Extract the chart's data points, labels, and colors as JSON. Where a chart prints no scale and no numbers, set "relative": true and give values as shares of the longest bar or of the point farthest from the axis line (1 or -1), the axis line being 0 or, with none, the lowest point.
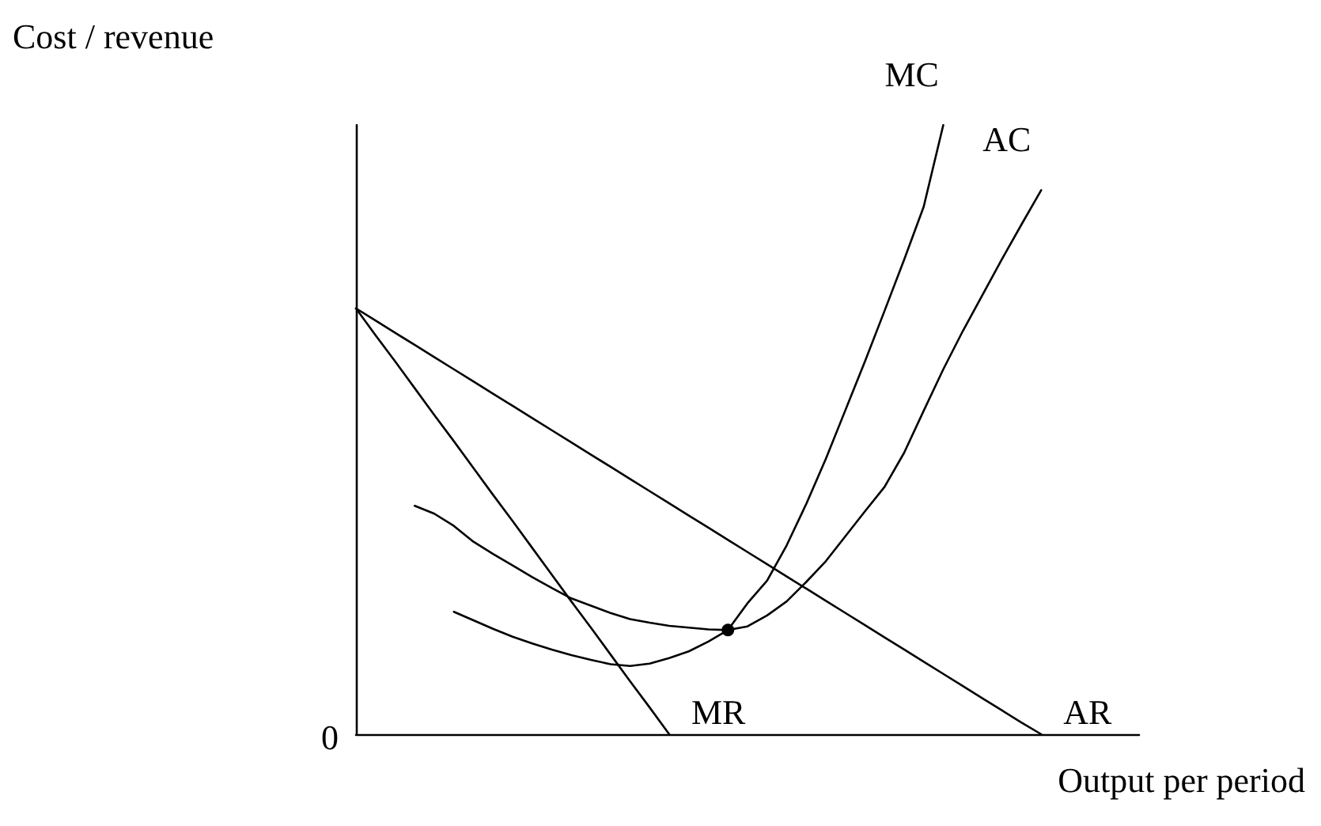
{
  "chart_data": {
    "type": "line",
    "relative": true,
    "ylabel": "Cost / revenue",
    "xlabel": "Output per period",
    "annotations": [
      "0"
    ],
    "grid": false,
    "legend": false,
    "line_style": "solid",
    "categories": [
      null,
      null,
      null,
      null,
      null,
      null,
      null,
      null,
      null,
      null,
      null,
      null,
      null,
      null,
      null,
      null,
      null,
      null,
      null,
      null,
      null,
      null,
      null,
      null,
      null,
      null,
      null,
      null,
      null,
      null,
      null,
      null,
      null,
      null,
      null,
      null,
      null,
      null,
      null,
      null,
      null
    ],
    "series": [
      {
        "name": "MC",
        "color": "#000000",
        "values": [
          null,
          null,
          null,
          null,
          null,
          0.201,
          0.187,
          0.173,
          0.16,
          0.149,
          0.139,
          0.13,
          0.122,
          0.115,
          0.112,
          0.116,
          0.125,
          0.136,
          0.152,
          0.171,
          0.215,
          0.252,
          0.31,
          0.378,
          0.452,
          0.532,
          0.612,
          0.695,
          0.779,
          0.866,
          1.0,
          null,
          null,
          null,
          null,
          null,
          null,
          null,
          null,
          null,
          null
        ]
      },
      {
        "name": "AC",
        "color": "#000000",
        "values": [
          null,
          null,
          null,
          0.375,
          0.362,
          0.342,
          0.316,
          0.296,
          0.277,
          0.258,
          0.24,
          0.223,
          0.211,
          0.199,
          0.189,
          0.183,
          0.178,
          0.175,
          0.172,
          0.171,
          0.177,
          0.195,
          0.218,
          0.25,
          0.284,
          0.325,
          0.366,
          0.406,
          0.462,
          0.531,
          0.599,
          0.662,
          0.721,
          0.78,
          0.837,
          0.893,
          null,
          null,
          null,
          null,
          null
        ]
      },
      {
        "name": "MR",
        "color": "#000000",
        "values": [
          0.699,
          0.655,
          0.612,
          0.568,
          0.524,
          0.481,
          0.437,
          0.393,
          0.35,
          0.306,
          0.262,
          0.218,
          0.175,
          0.131,
          0.087,
          0.044,
          0,
          null,
          null,
          null,
          null,
          null,
          null,
          null,
          null,
          null,
          null,
          null,
          null,
          null,
          null,
          null,
          null,
          null,
          null,
          null,
          null,
          null,
          null,
          null,
          null
        ]
      },
      {
        "name": "AR",
        "color": "#000000",
        "values": [
          0.699,
          0.679,
          0.659,
          0.639,
          0.619,
          0.599,
          0.579,
          0.559,
          0.539,
          0.519,
          0.499,
          0.479,
          0.459,
          0.439,
          0.419,
          0.399,
          0.379,
          0.359,
          0.339,
          0.319,
          0.299,
          0.279,
          0.259,
          0.239,
          0.219,
          0.199,
          0.179,
          0.159,
          0.139,
          0.119,
          0.099,
          0.079,
          0.059,
          0.039,
          0.019,
          0,
          null,
          null,
          null,
          null,
          null
        ]
      },
      {
        "marker": "circle",
        "color": "#000000",
        "values": [
          null,
          null,
          null,
          null,
          null,
          null,
          null,
          null,
          null,
          null,
          null,
          null,
          null,
          null,
          null,
          null,
          null,
          null,
          null,
          0.171,
          null,
          null,
          null,
          null,
          null,
          null,
          null,
          null,
          null,
          null,
          null,
          null,
          null,
          null,
          null,
          null,
          null,
          null,
          null,
          null,
          null
        ]
      }
    ]
  }
}
